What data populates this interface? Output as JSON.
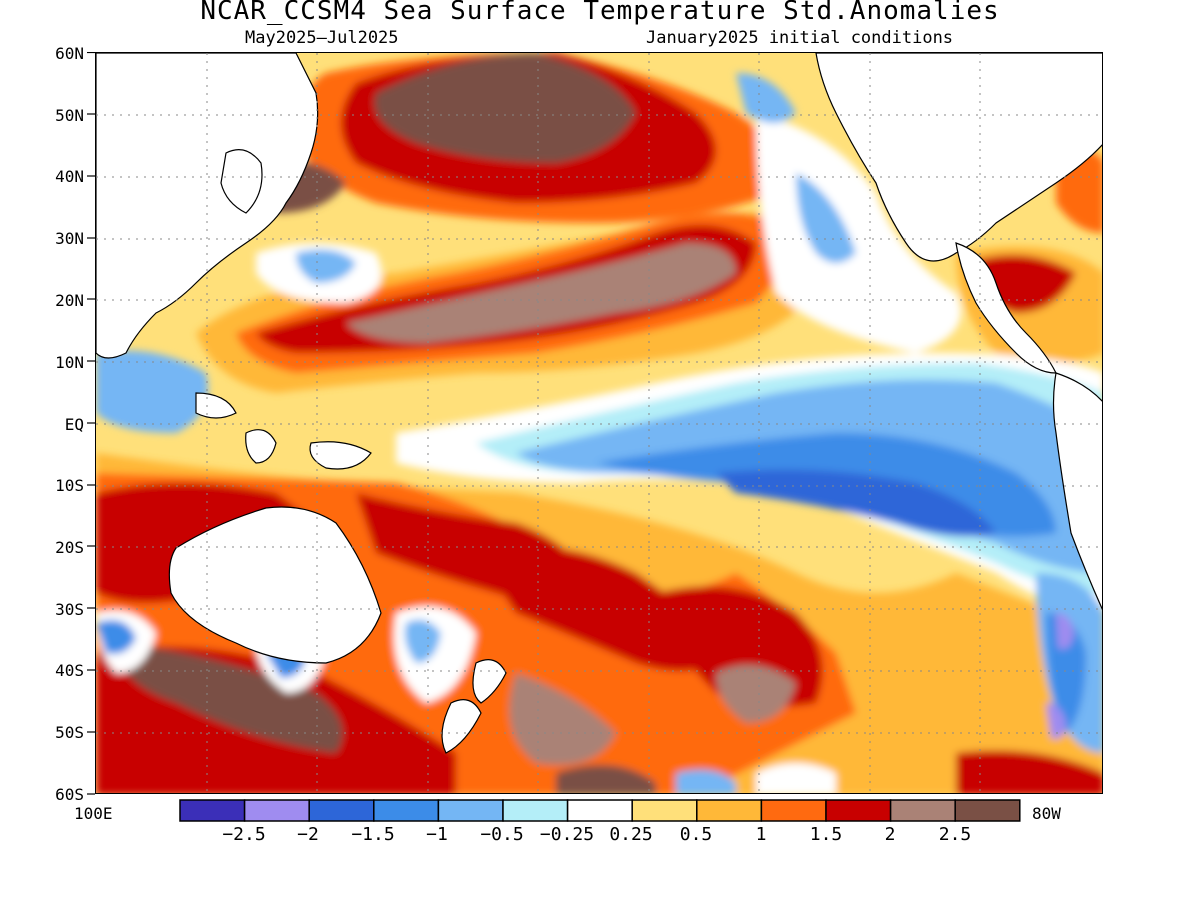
{
  "title": "NCAR_CCSM4 Sea Surface Temperature Std.Anomalies",
  "subtitle_left": "May2025—Jul2025",
  "subtitle_right": "January2025 initial conditions",
  "lat_labels": [
    "60N",
    "50N",
    "40N",
    "30N",
    "20N",
    "10N",
    "EQ",
    "10S",
    "20S",
    "30S",
    "40S",
    "50S",
    "60S"
  ],
  "lon_labels": {
    "left": "100E",
    "right": "80W"
  },
  "colorbar": {
    "colors": [
      "#3b2fb8",
      "#9f8cf0",
      "#2d66d8",
      "#3c8ce8",
      "#74b6f4",
      "#b4eef8",
      "#ffffff",
      "#ffe07a",
      "#ffb838",
      "#ff6a10",
      "#c80000",
      "#aa8276",
      "#7a5045"
    ],
    "labels": [
      "−2.5",
      "−2",
      "−1.5",
      "−1",
      "−0.5",
      "−0.25",
      "0.25",
      "0.5",
      "1",
      "1.5",
      "2",
      "2.5"
    ]
  }
}
